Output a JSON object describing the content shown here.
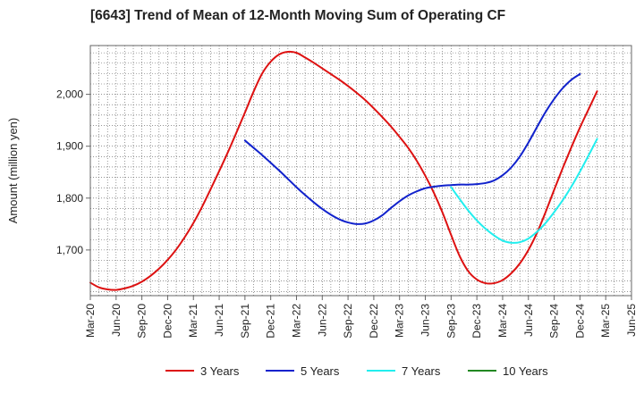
{
  "chart_data": {
    "type": "line",
    "title": "[6643]  Trend of Mean of 12-Month Moving Sum of Operating CF",
    "xlabel": "",
    "ylabel": "Amount (million yen)",
    "x_tick_labels": [
      "Mar-20",
      "Jun-20",
      "Sep-20",
      "Dec-20",
      "Mar-21",
      "Jun-21",
      "Sep-21",
      "Dec-21",
      "Mar-22",
      "Jun-22",
      "Sep-22",
      "Dec-22",
      "Mar-23",
      "Jun-23",
      "Sep-23",
      "Dec-23",
      "Mar-24",
      "Jun-24",
      "Sep-24",
      "Dec-24",
      "Mar-25",
      "Jun-25"
    ],
    "y_ticks": [
      1700,
      1800,
      1900,
      2000
    ],
    "y_tick_labels": [
      "1,700",
      "1,800",
      "1,900",
      "2,000"
    ],
    "ylim": [
      1612,
      2094
    ],
    "x_range_months": [
      0,
      63
    ],
    "x_note": "x values are months since Mar-20",
    "grid": true,
    "legend_position": "bottom",
    "series": [
      {
        "name": "3 Years",
        "color": "#dd1111",
        "points": [
          [
            0,
            1637
          ],
          [
            1,
            1628
          ],
          [
            2,
            1624
          ],
          [
            3,
            1623
          ],
          [
            4,
            1626
          ],
          [
            5,
            1631
          ],
          [
            6,
            1639
          ],
          [
            7,
            1650
          ],
          [
            8,
            1664
          ],
          [
            9,
            1681
          ],
          [
            10,
            1701
          ],
          [
            11,
            1725
          ],
          [
            12,
            1752
          ],
          [
            13,
            1783
          ],
          [
            14,
            1817
          ],
          [
            15,
            1852
          ],
          [
            16,
            1888
          ],
          [
            17,
            1926
          ],
          [
            18,
            1965
          ],
          [
            19,
            2005
          ],
          [
            20,
            2040
          ],
          [
            21,
            2063
          ],
          [
            22,
            2077
          ],
          [
            23,
            2082
          ],
          [
            24,
            2080
          ],
          [
            25,
            2071
          ],
          [
            26,
            2061
          ],
          [
            27,
            2050
          ],
          [
            28,
            2039
          ],
          [
            29,
            2028
          ],
          [
            30,
            2016
          ],
          [
            31,
            2003
          ],
          [
            32,
            1989
          ],
          [
            33,
            1973
          ],
          [
            34,
            1956
          ],
          [
            35,
            1938
          ],
          [
            36,
            1918
          ],
          [
            37,
            1897
          ],
          [
            38,
            1872
          ],
          [
            39,
            1843
          ],
          [
            40,
            1810
          ],
          [
            41,
            1772
          ],
          [
            42,
            1729
          ],
          [
            43,
            1688
          ],
          [
            44,
            1659
          ],
          [
            45,
            1643
          ],
          [
            46,
            1636
          ],
          [
            47,
            1636
          ],
          [
            48,
            1642
          ],
          [
            49,
            1655
          ],
          [
            50,
            1674
          ],
          [
            51,
            1700
          ],
          [
            52,
            1733
          ],
          [
            53,
            1773
          ],
          [
            54,
            1816
          ],
          [
            55,
            1858
          ],
          [
            56,
            1898
          ],
          [
            57,
            1936
          ],
          [
            58,
            1971
          ],
          [
            59,
            2006
          ]
        ]
      },
      {
        "name": "5 Years",
        "color": "#1122cc",
        "points": [
          [
            18,
            1911
          ],
          [
            19,
            1897
          ],
          [
            20,
            1883
          ],
          [
            21,
            1868
          ],
          [
            22,
            1853
          ],
          [
            23,
            1837
          ],
          [
            24,
            1821
          ],
          [
            25,
            1806
          ],
          [
            26,
            1792
          ],
          [
            27,
            1779
          ],
          [
            28,
            1768
          ],
          [
            29,
            1759
          ],
          [
            30,
            1753
          ],
          [
            31,
            1750
          ],
          [
            32,
            1751
          ],
          [
            33,
            1757
          ],
          [
            34,
            1767
          ],
          [
            35,
            1781
          ],
          [
            36,
            1794
          ],
          [
            37,
            1805
          ],
          [
            38,
            1813
          ],
          [
            39,
            1819
          ],
          [
            40,
            1822
          ],
          [
            41,
            1824
          ],
          [
            42,
            1825
          ],
          [
            43,
            1826
          ],
          [
            44,
            1826
          ],
          [
            45,
            1827
          ],
          [
            46,
            1829
          ],
          [
            47,
            1834
          ],
          [
            48,
            1844
          ],
          [
            49,
            1859
          ],
          [
            50,
            1880
          ],
          [
            51,
            1907
          ],
          [
            52,
            1937
          ],
          [
            53,
            1966
          ],
          [
            54,
            1991
          ],
          [
            55,
            2012
          ],
          [
            56,
            2028
          ],
          [
            57,
            2039
          ]
        ]
      },
      {
        "name": "7 Years",
        "color": "#22eeee",
        "points": [
          [
            42,
            1821
          ],
          [
            43,
            1798
          ],
          [
            44,
            1776
          ],
          [
            45,
            1757
          ],
          [
            46,
            1741
          ],
          [
            47,
            1728
          ],
          [
            48,
            1718
          ],
          [
            49,
            1714
          ],
          [
            50,
            1715
          ],
          [
            51,
            1722
          ],
          [
            52,
            1735
          ],
          [
            53,
            1752
          ],
          [
            54,
            1773
          ],
          [
            55,
            1796
          ],
          [
            56,
            1822
          ],
          [
            57,
            1851
          ],
          [
            58,
            1882
          ],
          [
            59,
            1914
          ]
        ]
      },
      {
        "name": "10 Years",
        "color": "#228822",
        "points": []
      }
    ]
  }
}
